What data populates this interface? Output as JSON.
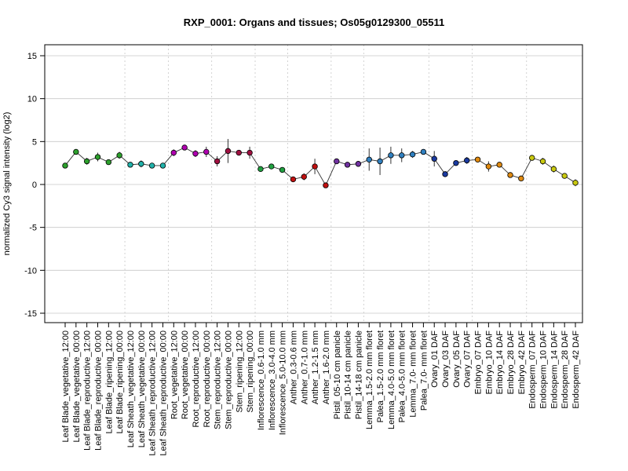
{
  "chart_data": {
    "type": "line",
    "title": "RXP_0001: Organs and tissues; Os05g0129300_05511",
    "xlabel": "",
    "ylabel": "normalized Cy3 signal intensity (log2)",
    "ylim": [
      -15,
      15
    ],
    "yticks": [
      -15,
      -10,
      -5,
      0,
      5,
      10,
      15
    ],
    "grid": "horizontal lines at y ticks; dotted vertical separators between tissue groups",
    "line_color": "#333333",
    "categories": [
      "Leaf Blade_vegetative_12:00",
      "Leaf Blade_vegetative_00:00",
      "Leaf Blade_reproductive_12:00",
      "Leaf Blade_reproductive_00:00",
      "Leaf Blade_ripening_12:00",
      "Leaf Blade_ripening_00:00",
      "Leaf Sheath_vegetative_12:00",
      "Leaf Sheath_vegetative_00:00",
      "Leaf Sheath_reproductive_12:00",
      "Leaf Sheath_reproductive_00:00",
      "Root_vegetative_12:00",
      "Root_vegetative_00:00",
      "Root_reproductive_12:00",
      "Root_reproductive_00:00",
      "Stem_reproductive_12:00",
      "Stem_reproductive_00:00",
      "Stem_ripening_12:00",
      "Stem_ripening_00:00",
      "Inflorescence_0.6-1.0 mm",
      "Inflorescence_3.0-4.0 mm",
      "Inflorescence_5.0-10.0 mm",
      "Anther_0.3-0.6 mm",
      "Anther_0.7-1.0 mm",
      "Anther_1.2-1.5 mm",
      "Anther_1.6-2.0 mm",
      "Pistil_05-10 cm panicle",
      "Pistil_10-14 cm panicle",
      "Pistil_14-18 cm panicle",
      "Lemma_1.5-2.0 mm floret",
      "Palea_1.5-2.0 mm floret",
      "Lemma_4.0-5.0 mm floret",
      "Palea_4.0-5.0 mm floret",
      "Lemma_7.0- mm floret",
      "Palea_7.0- mm floret",
      "Ovary_01 DAF",
      "Ovary_03 DAF",
      "Ovary_05 DAF",
      "Ovary_07 DAF",
      "Embryo_07 DAF",
      "Embryo_10 DAF",
      "Embryo_14 DAF",
      "Embryo_28 DAF",
      "Embryo_42 DAF",
      "Endosperm_07 DAF",
      "Endosperm_10 DAF",
      "Endosperm_14 DAF",
      "Endosperm_28 DAF",
      "Endosperm_42 DAF"
    ],
    "values": [
      2.2,
      3.8,
      2.7,
      3.2,
      2.6,
      3.4,
      2.3,
      2.4,
      2.2,
      2.2,
      3.7,
      4.3,
      3.6,
      3.8,
      2.7,
      3.9,
      3.7,
      3.7,
      1.8,
      2.1,
      1.7,
      0.6,
      0.9,
      2.1,
      -0.1,
      2.7,
      2.3,
      2.4,
      2.9,
      2.7,
      3.4,
      3.4,
      3.5,
      3.8,
      3.0,
      1.2,
      2.5,
      2.8,
      2.9,
      2.1,
      2.3,
      1.1,
      0.7,
      3.1,
      2.7,
      1.8,
      1.0,
      0.2
    ],
    "errors": [
      0.3,
      0.3,
      0.4,
      0.5,
      0.3,
      0.4,
      0.2,
      0.4,
      0.2,
      0.3,
      0.4,
      0.2,
      0.4,
      0.6,
      0.6,
      1.4,
      0.3,
      0.7,
      0.2,
      0.2,
      0.3,
      0.3,
      0.4,
      0.9,
      0.2,
      0.3,
      0.2,
      0.2,
      1.3,
      1.6,
      1.0,
      0.8,
      0.4,
      0.3,
      0.9,
      0.2,
      0.3,
      0.4,
      0.3,
      0.6,
      0.3,
      0.3,
      0.2,
      0.3,
      0.4,
      0.4,
      0.3,
      0.4
    ],
    "point_colors": [
      "#2ca02c",
      "#2ca02c",
      "#2ca02c",
      "#2ca02c",
      "#2ca02c",
      "#2ca02c",
      "#20b2aa",
      "#20b2aa",
      "#20b2aa",
      "#20b2aa",
      "#b000b0",
      "#b000b0",
      "#b000b0",
      "#b000b0",
      "#a01040",
      "#a01040",
      "#a01040",
      "#a01040",
      "#20a040",
      "#20a040",
      "#20a040",
      "#c01010",
      "#c01010",
      "#c01010",
      "#c01010",
      "#7030a0",
      "#7030a0",
      "#7030a0",
      "#3080c0",
      "#3080c0",
      "#3080c0",
      "#3080c0",
      "#3080c0",
      "#3080c0",
      "#1a3aa0",
      "#1a3aa0",
      "#1a3aa0",
      "#1a3aa0",
      "#e08a10",
      "#e08a10",
      "#e08a10",
      "#e08a10",
      "#e08a10",
      "#c8c810",
      "#c8c810",
      "#c8c810",
      "#c8c810",
      "#c8c810"
    ],
    "group_separators_after_index": [
      5,
      9,
      13,
      17,
      20,
      24,
      27,
      33,
      37,
      42
    ]
  }
}
